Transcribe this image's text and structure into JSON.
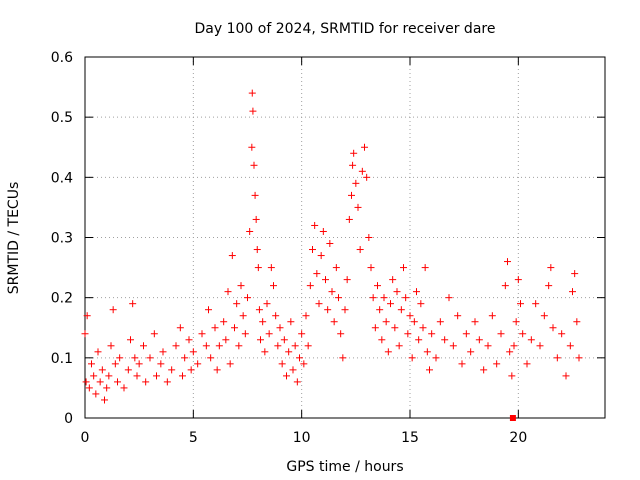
{
  "chart_data": {
    "type": "scatter",
    "title": "Day 100 of 2024, SRMTID for receiver dare",
    "xlabel": "GPS time / hours",
    "ylabel": "SRMTID / TECUs",
    "xlim": [
      0,
      24
    ],
    "ylim": [
      0,
      0.6
    ],
    "grid": true,
    "x_ticks": [
      {
        "value": 0,
        "label": "0"
      },
      {
        "value": 5,
        "label": "5"
      },
      {
        "value": 10,
        "label": "10"
      },
      {
        "value": 15,
        "label": "15"
      },
      {
        "value": 20,
        "label": "20"
      }
    ],
    "y_ticks": [
      {
        "value": 0,
        "label": "0"
      },
      {
        "value": 0.1,
        "label": "0.1"
      },
      {
        "value": 0.2,
        "label": "0.2"
      },
      {
        "value": 0.3,
        "label": "0.3"
      },
      {
        "value": 0.4,
        "label": "0.4"
      },
      {
        "value": 0.5,
        "label": "0.5"
      },
      {
        "value": 0.6,
        "label": "0.6"
      }
    ],
    "marker_color": "#ff0000",
    "series": [
      {
        "name": "SRMTID",
        "marker": "plus",
        "points": [
          [
            0.0,
            0.14
          ],
          [
            0.05,
            0.06
          ],
          [
            0.1,
            0.17
          ],
          [
            0.2,
            0.05
          ],
          [
            0.3,
            0.09
          ],
          [
            0.4,
            0.07
          ],
          [
            0.5,
            0.04
          ],
          [
            0.6,
            0.11
          ],
          [
            0.7,
            0.06
          ],
          [
            0.8,
            0.08
          ],
          [
            0.9,
            0.03
          ],
          [
            1.0,
            0.05
          ],
          [
            1.1,
            0.07
          ],
          [
            1.2,
            0.12
          ],
          [
            1.3,
            0.18
          ],
          [
            1.4,
            0.09
          ],
          [
            1.5,
            0.06
          ],
          [
            1.6,
            0.1
          ],
          [
            1.8,
            0.05
          ],
          [
            2.0,
            0.08
          ],
          [
            2.1,
            0.13
          ],
          [
            2.2,
            0.19
          ],
          [
            2.3,
            0.1
          ],
          [
            2.4,
            0.07
          ],
          [
            2.5,
            0.09
          ],
          [
            2.7,
            0.12
          ],
          [
            2.8,
            0.06
          ],
          [
            3.0,
            0.1
          ],
          [
            3.2,
            0.14
          ],
          [
            3.3,
            0.07
          ],
          [
            3.5,
            0.09
          ],
          [
            3.6,
            0.11
          ],
          [
            3.8,
            0.06
          ],
          [
            4.0,
            0.08
          ],
          [
            4.2,
            0.12
          ],
          [
            4.4,
            0.15
          ],
          [
            4.5,
            0.07
          ],
          [
            4.6,
            0.1
          ],
          [
            4.8,
            0.13
          ],
          [
            4.9,
            0.08
          ],
          [
            5.0,
            0.11
          ],
          [
            5.2,
            0.09
          ],
          [
            5.4,
            0.14
          ],
          [
            5.6,
            0.12
          ],
          [
            5.7,
            0.18
          ],
          [
            5.8,
            0.1
          ],
          [
            6.0,
            0.15
          ],
          [
            6.1,
            0.08
          ],
          [
            6.2,
            0.12
          ],
          [
            6.4,
            0.16
          ],
          [
            6.5,
            0.13
          ],
          [
            6.6,
            0.21
          ],
          [
            6.7,
            0.09
          ],
          [
            6.8,
            0.27
          ],
          [
            6.9,
            0.15
          ],
          [
            7.0,
            0.19
          ],
          [
            7.1,
            0.12
          ],
          [
            7.2,
            0.22
          ],
          [
            7.3,
            0.17
          ],
          [
            7.4,
            0.14
          ],
          [
            7.5,
            0.2
          ],
          [
            7.6,
            0.31
          ],
          [
            7.7,
            0.45
          ],
          [
            7.72,
            0.54
          ],
          [
            7.75,
            0.51
          ],
          [
            7.8,
            0.42
          ],
          [
            7.85,
            0.37
          ],
          [
            7.9,
            0.33
          ],
          [
            7.95,
            0.28
          ],
          [
            8.0,
            0.25
          ],
          [
            8.05,
            0.18
          ],
          [
            8.1,
            0.13
          ],
          [
            8.2,
            0.16
          ],
          [
            8.3,
            0.11
          ],
          [
            8.4,
            0.19
          ],
          [
            8.5,
            0.14
          ],
          [
            8.6,
            0.25
          ],
          [
            8.7,
            0.22
          ],
          [
            8.8,
            0.17
          ],
          [
            8.9,
            0.12
          ],
          [
            9.0,
            0.15
          ],
          [
            9.1,
            0.09
          ],
          [
            9.2,
            0.13
          ],
          [
            9.3,
            0.07
          ],
          [
            9.4,
            0.11
          ],
          [
            9.5,
            0.16
          ],
          [
            9.6,
            0.08
          ],
          [
            9.7,
            0.12
          ],
          [
            9.8,
            0.06
          ],
          [
            9.9,
            0.1
          ],
          [
            10.0,
            0.14
          ],
          [
            10.1,
            0.09
          ],
          [
            10.2,
            0.17
          ],
          [
            10.3,
            0.12
          ],
          [
            10.4,
            0.22
          ],
          [
            10.5,
            0.28
          ],
          [
            10.6,
            0.32
          ],
          [
            10.7,
            0.24
          ],
          [
            10.8,
            0.19
          ],
          [
            10.9,
            0.27
          ],
          [
            11.0,
            0.31
          ],
          [
            11.1,
            0.23
          ],
          [
            11.2,
            0.18
          ],
          [
            11.3,
            0.29
          ],
          [
            11.4,
            0.21
          ],
          [
            11.5,
            0.16
          ],
          [
            11.6,
            0.25
          ],
          [
            11.7,
            0.2
          ],
          [
            11.8,
            0.14
          ],
          [
            11.9,
            0.1
          ],
          [
            12.0,
            0.18
          ],
          [
            12.1,
            0.23
          ],
          [
            12.2,
            0.33
          ],
          [
            12.3,
            0.37
          ],
          [
            12.35,
            0.42
          ],
          [
            12.4,
            0.44
          ],
          [
            12.5,
            0.39
          ],
          [
            12.6,
            0.35
          ],
          [
            12.7,
            0.28
          ],
          [
            12.8,
            0.41
          ],
          [
            12.9,
            0.45
          ],
          [
            13.0,
            0.4
          ],
          [
            13.1,
            0.3
          ],
          [
            13.2,
            0.25
          ],
          [
            13.3,
            0.2
          ],
          [
            13.4,
            0.15
          ],
          [
            13.5,
            0.22
          ],
          [
            13.6,
            0.18
          ],
          [
            13.7,
            0.13
          ],
          [
            13.8,
            0.2
          ],
          [
            13.9,
            0.16
          ],
          [
            14.0,
            0.11
          ],
          [
            14.1,
            0.19
          ],
          [
            14.2,
            0.23
          ],
          [
            14.3,
            0.15
          ],
          [
            14.4,
            0.21
          ],
          [
            14.5,
            0.12
          ],
          [
            14.6,
            0.18
          ],
          [
            14.7,
            0.25
          ],
          [
            14.8,
            0.2
          ],
          [
            14.9,
            0.14
          ],
          [
            15.0,
            0.17
          ],
          [
            15.1,
            0.1
          ],
          [
            15.2,
            0.16
          ],
          [
            15.3,
            0.21
          ],
          [
            15.4,
            0.13
          ],
          [
            15.5,
            0.19
          ],
          [
            15.6,
            0.15
          ],
          [
            15.7,
            0.25
          ],
          [
            15.8,
            0.11
          ],
          [
            15.9,
            0.08
          ],
          [
            16.0,
            0.14
          ],
          [
            16.2,
            0.1
          ],
          [
            16.4,
            0.16
          ],
          [
            16.6,
            0.13
          ],
          [
            16.8,
            0.2
          ],
          [
            17.0,
            0.12
          ],
          [
            17.2,
            0.17
          ],
          [
            17.4,
            0.09
          ],
          [
            17.6,
            0.14
          ],
          [
            17.8,
            0.11
          ],
          [
            18.0,
            0.16
          ],
          [
            18.2,
            0.13
          ],
          [
            18.4,
            0.08
          ],
          [
            18.6,
            0.12
          ],
          [
            18.8,
            0.17
          ],
          [
            19.0,
            0.09
          ],
          [
            19.2,
            0.14
          ],
          [
            19.4,
            0.22
          ],
          [
            19.5,
            0.26
          ],
          [
            19.6,
            0.11
          ],
          [
            19.7,
            0.07
          ],
          [
            19.8,
            0.12
          ],
          [
            19.9,
            0.16
          ],
          [
            20.0,
            0.23
          ],
          [
            20.1,
            0.19
          ],
          [
            20.2,
            0.14
          ],
          [
            20.4,
            0.09
          ],
          [
            20.6,
            0.13
          ],
          [
            20.8,
            0.19
          ],
          [
            21.0,
            0.12
          ],
          [
            21.2,
            0.17
          ],
          [
            21.4,
            0.22
          ],
          [
            21.5,
            0.25
          ],
          [
            21.6,
            0.15
          ],
          [
            21.8,
            0.1
          ],
          [
            22.0,
            0.14
          ],
          [
            22.2,
            0.07
          ],
          [
            22.4,
            0.12
          ],
          [
            22.5,
            0.21
          ],
          [
            22.6,
            0.24
          ],
          [
            22.7,
            0.16
          ],
          [
            22.8,
            0.1
          ]
        ]
      }
    ],
    "markers_on_axis": [
      {
        "x": 19.75,
        "y": 0,
        "marker": "filled-square"
      }
    ]
  }
}
